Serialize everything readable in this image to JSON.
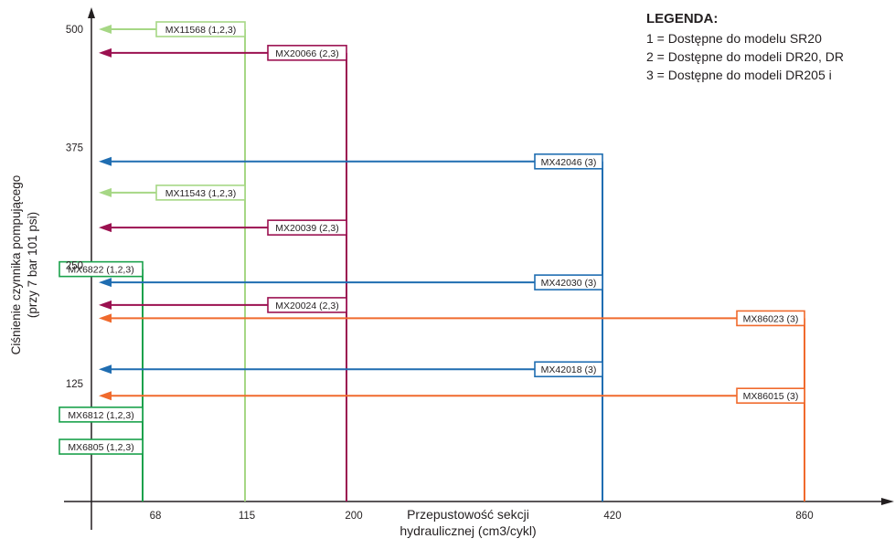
{
  "chart_data": {
    "type": "line",
    "title": "",
    "xlabel": [
      "Przepustowość sekcji",
      "hydraulicznej (cm3/cykl)"
    ],
    "ylabel": [
      "Ciśnienie czynnika pompującego",
      "(przy 7 bar 101 psi)"
    ],
    "x_ticks": [
      "68",
      "115",
      "200",
      "420",
      "860"
    ],
    "y_ticks": [
      {
        "label": "125",
        "value": 125
      },
      {
        "label": "250",
        "value": 250
      },
      {
        "label": "375",
        "value": 375
      },
      {
        "label": "500",
        "value": 500
      }
    ],
    "ylim": [
      0,
      500
    ],
    "grid": false,
    "legend": {
      "title": "LEGENDA:",
      "items": [
        "1 = Dostępne do modelu SR20",
        "2 = Dostępne do modeli DR20, DR",
        "3 = Dostępne do modeli DR205 i"
      ]
    },
    "groups": [
      {
        "flow": "68",
        "color": "#1aa14b",
        "series": [
          {
            "name": "MX6822 (1,2,3)",
            "y": 246
          },
          {
            "name": "MX6812 (1,2,3)",
            "y": 92
          },
          {
            "name": "MX6805 (1,2,3)",
            "y": 58
          }
        ]
      },
      {
        "flow": "115",
        "color": "#a6d785",
        "series": [
          {
            "name": "MX11568 (1,2,3)",
            "y": 500
          },
          {
            "name": "MX11543 (1,2,3)",
            "y": 327
          }
        ]
      },
      {
        "flow": "200",
        "color": "#9b1150",
        "series": [
          {
            "name": "MX20066 (2,3)",
            "y": 475
          },
          {
            "name": "MX20039 (2,3)",
            "y": 290
          },
          {
            "name": "MX20024 (2,3)",
            "y": 208
          }
        ]
      },
      {
        "flow": "420",
        "color": "#1f6db1",
        "series": [
          {
            "name": "MX42046 (3)",
            "y": 360
          },
          {
            "name": "MX42030 (3)",
            "y": 232
          },
          {
            "name": "MX42018 (3)",
            "y": 140
          }
        ]
      },
      {
        "flow": "860",
        "color": "#f06a2d",
        "series": [
          {
            "name": "MX86023 (3)",
            "y": 194
          },
          {
            "name": "MX86015 (3)",
            "y": 112
          }
        ]
      }
    ]
  }
}
